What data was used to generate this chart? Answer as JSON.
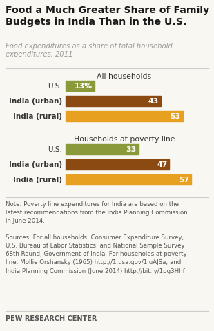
{
  "title": "Food a Much Greater Share of Family\nBudgets in India Than in the U.S.",
  "subtitle": "Food expenditures as a share of total household\nexpenditures, 2011",
  "section1_label": "All households",
  "section2_label": "Households at poverty line",
  "categories1": [
    "U.S.",
    "India (urban)",
    "India (rural)"
  ],
  "values1": [
    13,
    43,
    53
  ],
  "labels1": [
    "13%",
    "43",
    "53"
  ],
  "colors1": [
    "#8a9a3a",
    "#8b4a12",
    "#e8a020"
  ],
  "categories2": [
    "U.S.",
    "India (urban)",
    "India (rural)"
  ],
  "values2": [
    33,
    47,
    57
  ],
  "labels2": [
    "33",
    "47",
    "57"
  ],
  "colors2": [
    "#8a9a3a",
    "#8b4a12",
    "#e8a020"
  ],
  "note_text": "Note: Poverty line expenditures for India are based on the\nlatest recommendations from the India Planning Commission\nin June 2014.",
  "sources_text": "Sources: For all households: Consumer Expenditure Survey,\nU.S. Bureau of Labor Statistics; and National Sample Survey\n68th Round, Government of India. For households at poverty\nline: Mollie Orshansky (1965) http://1.usa.gov/1JuAJSa; and\nIndia Planning Commission (June 2014) http://bit.ly/1pg3Hhf",
  "footer": "PEW RESEARCH CENTER",
  "background_color": "#f9f7f1",
  "text_color": "#333333",
  "subtitle_color": "#999999",
  "note_color": "#555555",
  "line_color": "#cccccc"
}
